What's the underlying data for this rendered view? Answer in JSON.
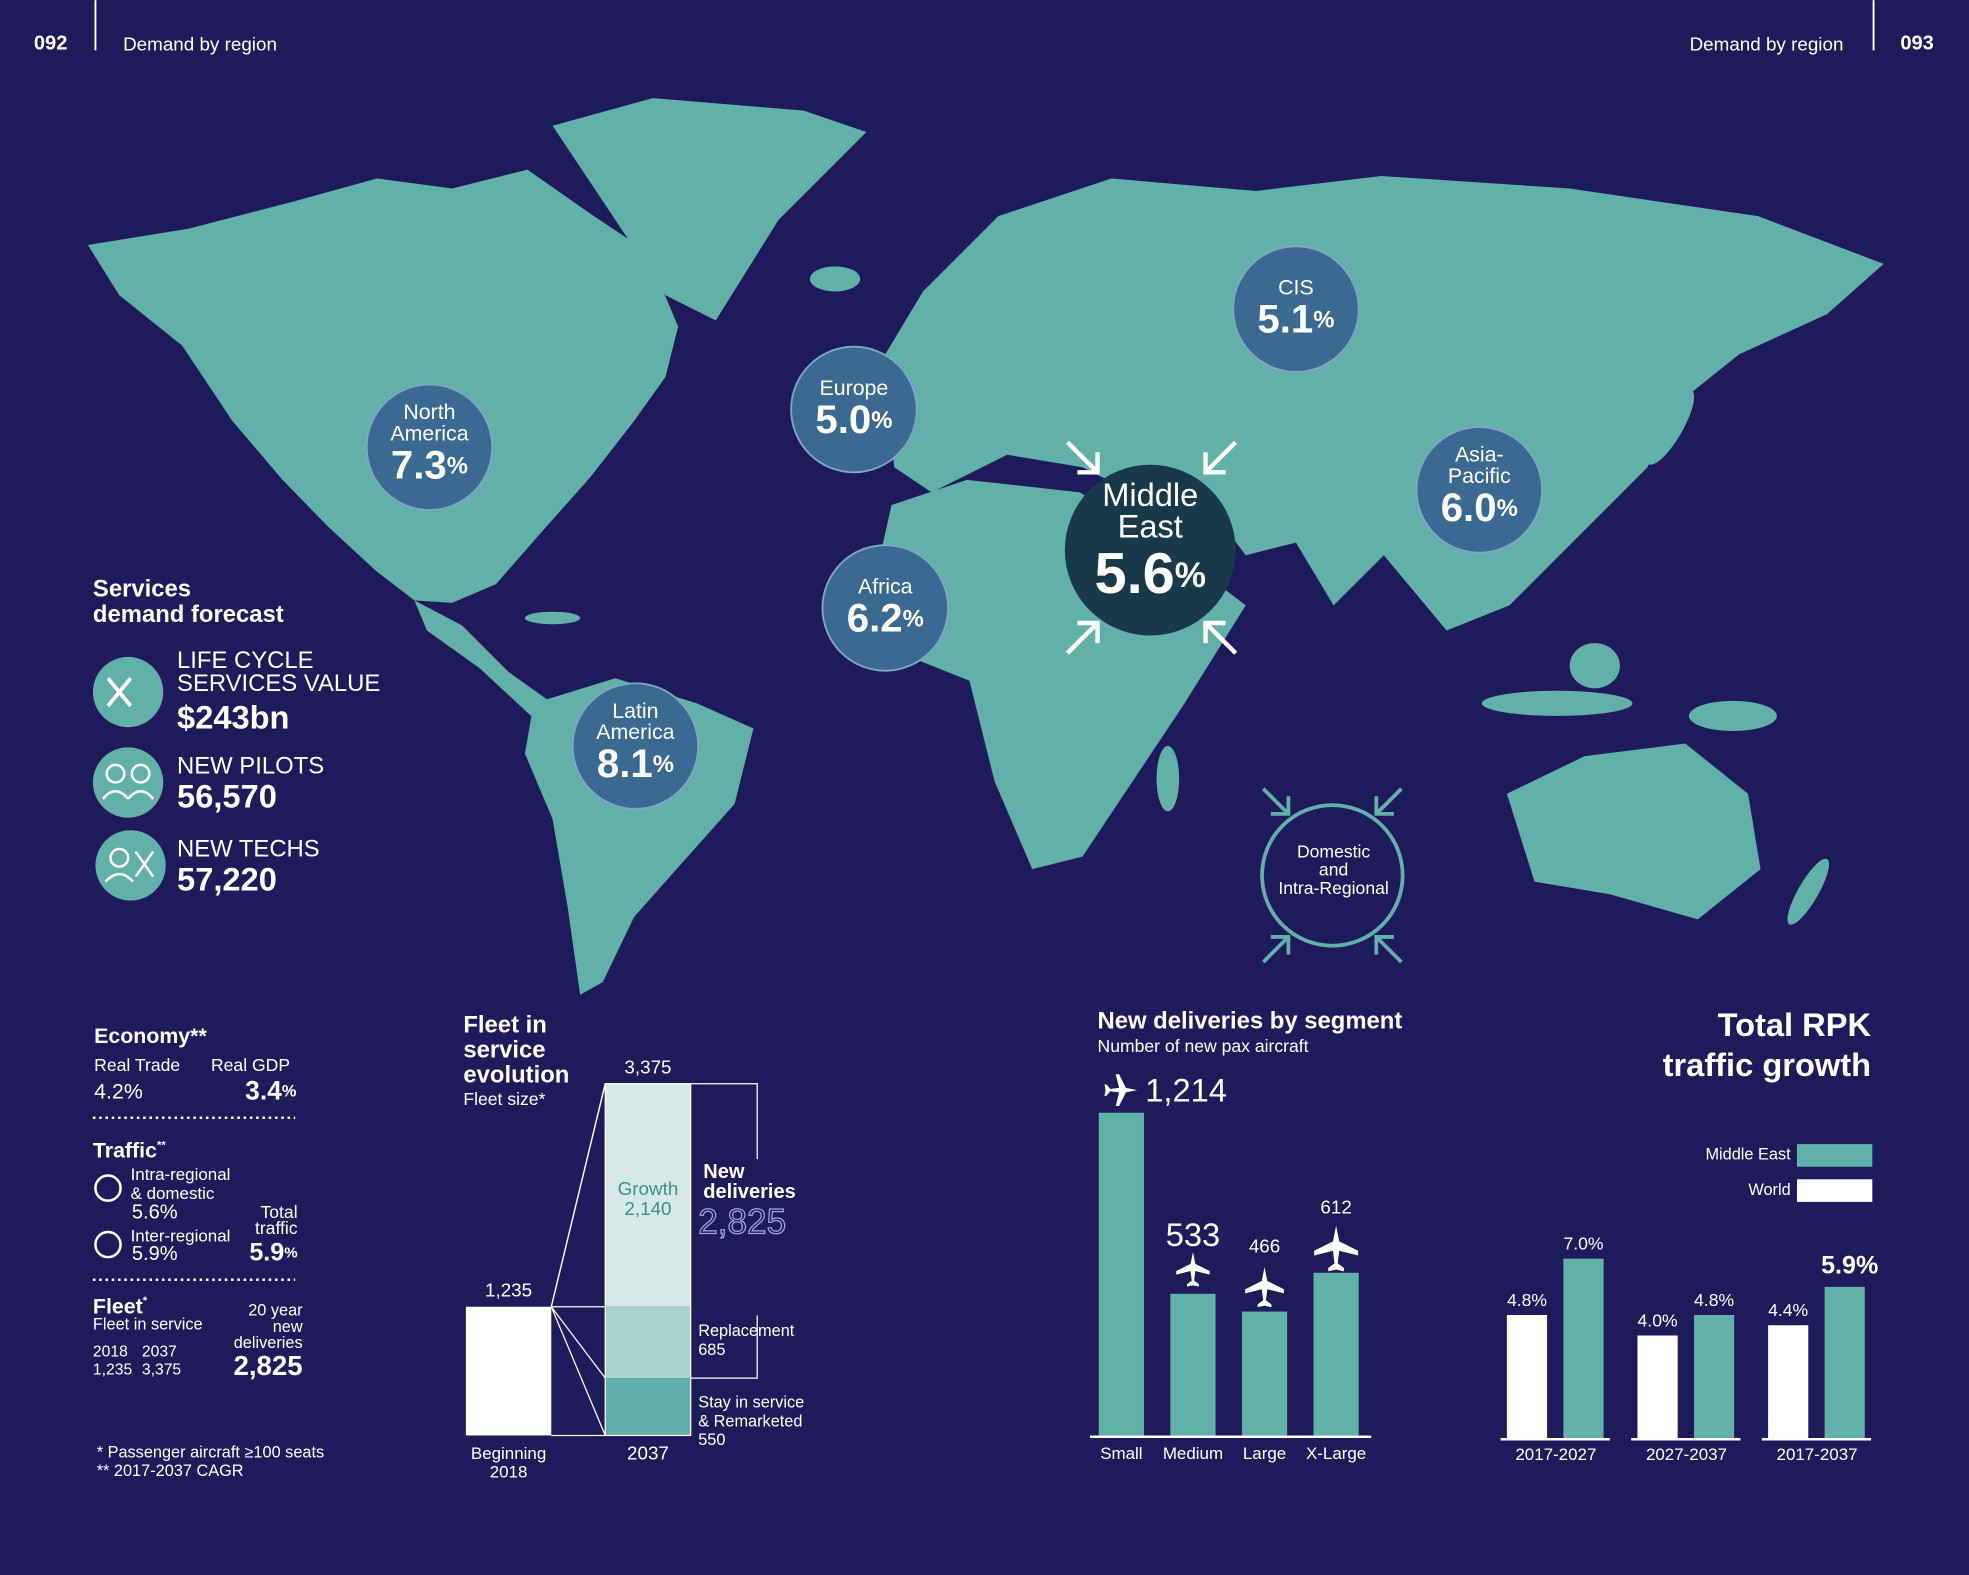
{
  "header": {
    "left_page": "092",
    "left_section": "Demand by region",
    "right_section": "Demand by region",
    "right_page": "093"
  },
  "regions": [
    {
      "name": [
        "North",
        "America"
      ],
      "value": "7.3",
      "unit": "%"
    },
    {
      "name": [
        "Europe"
      ],
      "value": "5.0",
      "unit": "%"
    },
    {
      "name": [
        "CIS"
      ],
      "value": "5.1",
      "unit": "%"
    },
    {
      "name": [
        "Asia-",
        "Pacific"
      ],
      "value": "6.0",
      "unit": "%"
    },
    {
      "name": [
        "Africa"
      ],
      "value": "6.2",
      "unit": "%"
    },
    {
      "name": [
        "Latin",
        "America"
      ],
      "value": "8.1",
      "unit": "%"
    }
  ],
  "middle_east": {
    "name": [
      "Middle",
      "East"
    ],
    "value": "5.6",
    "unit": "%"
  },
  "domestic": [
    "Domestic",
    "and",
    "Intra-Regional"
  ],
  "services": {
    "title": [
      "Services",
      "demand forecast"
    ],
    "items": [
      {
        "label": [
          "LIFE CYCLE",
          "SERVICES VALUE"
        ],
        "value": "$243bn"
      },
      {
        "label": [
          "NEW PILOTS"
        ],
        "value": "56,570"
      },
      {
        "label": [
          "NEW TECHS"
        ],
        "value": "57,220"
      }
    ]
  },
  "economy": {
    "title": "Economy**",
    "trade": {
      "label": "Real Trade",
      "value": "4.2%"
    },
    "gdp": {
      "label": "Real GDP",
      "value": "3.4",
      "unit": "%"
    }
  },
  "traffic": {
    "title": "Traffic",
    "title_note": "**",
    "items": [
      {
        "label": [
          "Intra-regional",
          "& domestic"
        ],
        "value": "5.6%"
      },
      {
        "label": [
          "Inter-regional"
        ],
        "value": "5.9%"
      }
    ],
    "total": {
      "label": [
        "Total",
        "traffic"
      ],
      "value": "5.9",
      "unit": "%"
    }
  },
  "fleet": {
    "title": "Fleet",
    "title_note": "*",
    "subtitle": "Fleet in service",
    "years": [
      "2018",
      "2037"
    ],
    "values": [
      "1,235",
      "3,375"
    ],
    "deliveries": {
      "label": [
        "20 year",
        "new",
        "deliveries"
      ],
      "value": "2,825"
    }
  },
  "footnotes": [
    "* Passenger aircraft ≥100 seats",
    "** 2017-2037 CAGR"
  ],
  "chart_data": [
    {
      "type": "stacked_bar",
      "title": [
        "Fleet in",
        "service",
        "evolution"
      ],
      "subtitle": "Fleet size*",
      "categories": [
        [
          "Beginning",
          "2018"
        ],
        [
          "2037"
        ]
      ],
      "series": [
        {
          "color": "#ffffff",
          "values": [
            1235,
            null
          ],
          "value_labels": [
            "1,235",
            null
          ]
        },
        {
          "name": [
            "Stay in service",
            "& Remarketed"
          ],
          "color": "#5fb0a8",
          "values": [
            null,
            550
          ],
          "value_labels": [
            null,
            "550"
          ]
        },
        {
          "name": [
            "Replacement"
          ],
          "color": "#a8d2ce",
          "values": [
            null,
            685
          ],
          "value_labels": [
            null,
            "685"
          ]
        },
        {
          "name": [
            "Growth"
          ],
          "color": "#d5eae8",
          "values": [
            null,
            2140
          ],
          "value_labels": [
            null,
            "2,140"
          ]
        }
      ],
      "totals": [
        null,
        3375
      ],
      "total_labels": [
        null,
        "3,375"
      ],
      "annotation": {
        "label": [
          "New",
          "deliveries"
        ],
        "value": 2825,
        "value_label": "2,825"
      }
    },
    {
      "type": "bar",
      "title": "New deliveries by segment",
      "subtitle": "Number of new pax aircraft",
      "categories": [
        "Small",
        "Medium",
        "Large",
        "X-Large"
      ],
      "values": [
        1214,
        533,
        466,
        612
      ],
      "value_labels": [
        "1,214",
        "533",
        "466",
        "612"
      ],
      "color": "#62b1a9"
    },
    {
      "type": "grouped_bar",
      "title": [
        "Total RPK",
        "traffic growth"
      ],
      "categories": [
        "2017-2027",
        "2027-2037",
        "2017-2037"
      ],
      "series": [
        {
          "name": "Middle East",
          "color": "#62b1a9",
          "values": [
            7.0,
            4.8,
            5.9
          ],
          "value_labels": [
            "7.0%",
            "4.8%",
            "5.9%"
          ]
        },
        {
          "name": "World",
          "color": "#ffffff",
          "values": [
            4.8,
            4.0,
            4.4
          ],
          "value_labels": [
            "4.8%",
            "4.0%",
            "4.4%"
          ]
        }
      ],
      "legend": "upper right"
    }
  ]
}
